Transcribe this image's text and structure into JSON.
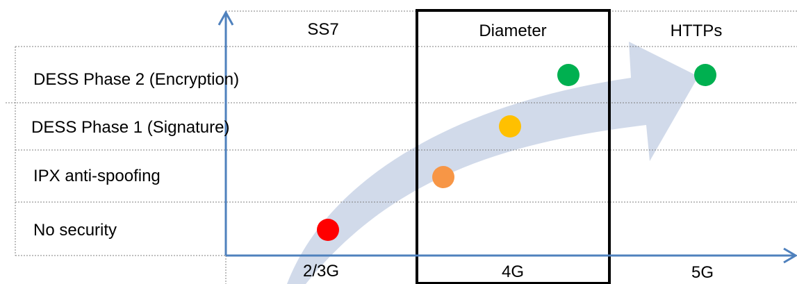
{
  "columns": [
    {
      "label": "SS7",
      "generation": "2/3G"
    },
    {
      "label": "Diameter",
      "generation": "4G"
    },
    {
      "label": "HTTPs",
      "generation": "5G"
    }
  ],
  "rows": [
    {
      "label": "DESS Phase 2 (Encryption)"
    },
    {
      "label": "DESS Phase 1 (Signature)"
    },
    {
      "label": "IPX anti-spoofing"
    },
    {
      "label": "No security"
    }
  ],
  "points": [
    {
      "level": "No security",
      "color_name": "red",
      "color": "#ff0000"
    },
    {
      "level": "IPX anti-spoofing",
      "color_name": "orange",
      "color": "#f79646"
    },
    {
      "level": "DESS Phase 1 (Signature)",
      "color_name": "yellow",
      "color": "#ffc000"
    },
    {
      "level": "DESS Phase 2 (Encryption)",
      "color_name": "green",
      "color": "#00b050"
    },
    {
      "level": "DESS Phase 2 (Encryption)",
      "color_name": "green",
      "color": "#00b050"
    }
  ],
  "colors": {
    "axis": "#4f81bd",
    "arrow_band": "#c9d3e6",
    "grid_dash": "#7f7f7f",
    "highlight_box": "#000000"
  },
  "highlighted_column": "Diameter"
}
